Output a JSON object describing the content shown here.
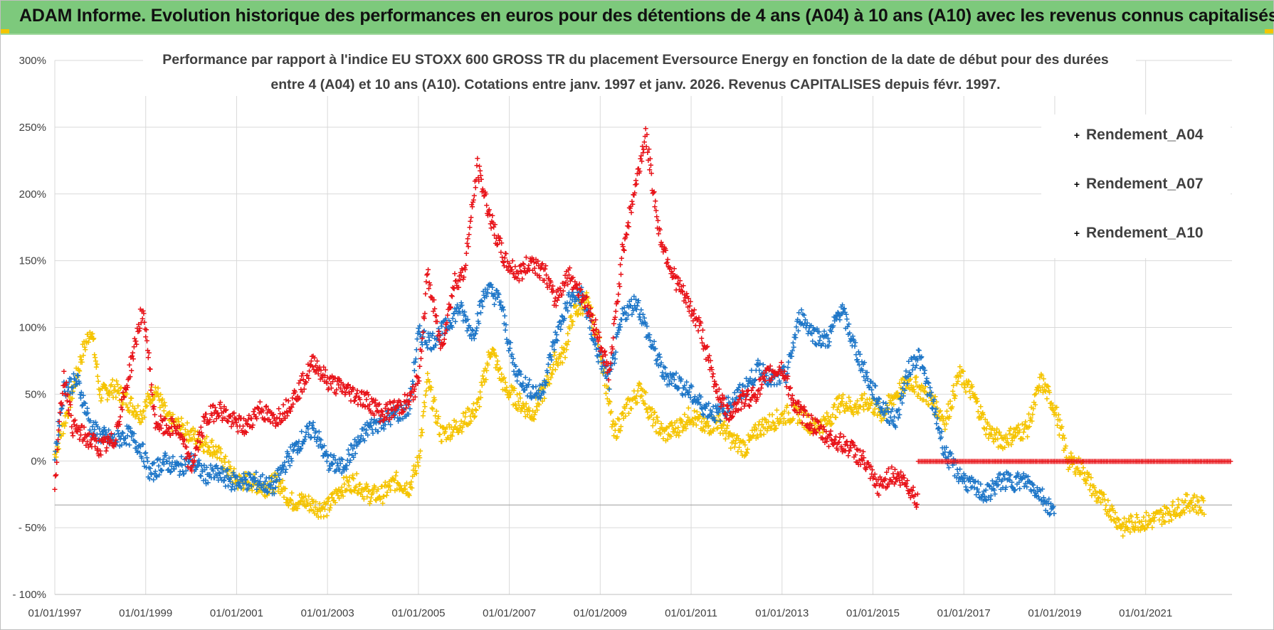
{
  "header": {
    "title": "ADAM Informe. Evolution historique des performances en euros pour des détentions de 4 ans (A04) à 10 ans (A10) avec les revenus connus capitalisés"
  },
  "chart_data": {
    "type": "scatter",
    "title_lines": [
      "Performance par rapport à l'indice EU STOXX 600 GROSS TR  du placement Eversource Energy en fonction de la date de début pour des durées",
      "entre 4 (A04) et 10 ans (A10).  Cotations entre janv. 1997 et janv. 2026. Revenus CAPITALISES depuis févr. 1997."
    ],
    "ylim": [
      -100,
      300
    ],
    "ytick_values": [
      -100,
      -50,
      0,
      50,
      100,
      150,
      200,
      250,
      300
    ],
    "ytick_labels": [
      "- 100%",
      "- 50%",
      "0%",
      "50%",
      "100%",
      "150%",
      "200%",
      "250%",
      "300%"
    ],
    "xlim": [
      1997.0,
      2022.9
    ],
    "xtick_values": [
      1997,
      1999,
      2001,
      2003,
      2005,
      2007,
      2009,
      2011,
      2013,
      2015,
      2017,
      2019,
      2021
    ],
    "xtick_labels": [
      "01/01/1997",
      "01/01/1999",
      "01/01/2001",
      "01/01/2003",
      "01/01/2005",
      "01/01/2007",
      "01/01/2009",
      "01/01/2011",
      "01/01/2013",
      "01/01/2015",
      "01/01/2017",
      "01/01/2019",
      "01/01/2021"
    ],
    "grid": true,
    "legend_position": "top-right",
    "marker": "+",
    "series": [
      {
        "name": "Rendement_A04",
        "color": "#f5c400",
        "x": [
          1997.0,
          1997.3,
          1997.6,
          1997.8,
          1998.0,
          1998.3,
          1998.6,
          1998.9,
          1999.2,
          1999.5,
          1999.8,
          2000.2,
          2000.5,
          2000.8,
          2001.0,
          2001.3,
          2001.6,
          2001.9,
          2002.2,
          2002.5,
          2002.8,
          2003.0,
          2003.3,
          2003.6,
          2003.9,
          2004.2,
          2004.5,
          2004.8,
          2005.0,
          2005.2,
          2005.5,
          2005.8,
          2006.0,
          2006.3,
          2006.6,
          2006.9,
          2007.2,
          2007.5,
          2007.8,
          2008.0,
          2008.2,
          2008.4,
          2008.7,
          2009.0,
          2009.3,
          2009.6,
          2009.9,
          2010.1,
          2010.4,
          2010.7,
          2011.0,
          2011.3,
          2011.6,
          2011.9,
          2012.2,
          2012.5,
          2012.8,
          2013.1,
          2013.4,
          2013.7,
          2014.0,
          2014.3,
          2014.6,
          2014.9,
          2015.2,
          2015.5,
          2015.8,
          2016.0,
          2016.3,
          2016.6,
          2016.9,
          2017.2,
          2017.5,
          2017.8,
          2018.1,
          2018.4,
          2018.7,
          2019.0,
          2019.3,
          2019.6,
          2019.9,
          2020.2,
          2020.5,
          2020.8,
          2021.1,
          2021.4,
          2021.7,
          2022.0,
          2022.3
        ],
        "y": [
          5,
          40,
          80,
          100,
          50,
          55,
          45,
          35,
          55,
          30,
          25,
          15,
          10,
          -5,
          -15,
          -15,
          -20,
          -15,
          -30,
          -30,
          -35,
          -35,
          -20,
          -15,
          -25,
          -25,
          -15,
          -20,
          0,
          60,
          20,
          25,
          30,
          40,
          85,
          55,
          45,
          35,
          55,
          75,
          80,
          110,
          120,
          85,
          20,
          40,
          55,
          35,
          20,
          25,
          35,
          25,
          30,
          15,
          10,
          25,
          30,
          35,
          35,
          25,
          30,
          45,
          40,
          45,
          35,
          50,
          60,
          55,
          45,
          30,
          65,
          50,
          25,
          15,
          20,
          25,
          60,
          40,
          0,
          -5,
          -25,
          -35,
          -50,
          -45,
          -45,
          -40,
          -35,
          -30,
          -35
        ]
      },
      {
        "name": "Rendement_A07",
        "color": "#1f77c8",
        "x": [
          1997.0,
          1997.2,
          1997.5,
          1997.8,
          1998.0,
          1998.3,
          1998.6,
          1998.9,
          1999.1,
          1999.4,
          1999.7,
          2000.0,
          2000.3,
          2000.6,
          2000.9,
          2001.2,
          2001.5,
          2001.8,
          2002.1,
          2002.4,
          2002.7,
          2003.0,
          2003.3,
          2003.6,
          2003.9,
          2004.2,
          2004.5,
          2004.8,
          2005.0,
          2005.3,
          2005.6,
          2005.9,
          2006.2,
          2006.5,
          2006.8,
          2007.1,
          2007.4,
          2007.7,
          2008.0,
          2008.3,
          2008.6,
          2008.9,
          2009.2,
          2009.5,
          2009.8,
          2010.1,
          2010.4,
          2010.7,
          2011.0,
          2011.3,
          2011.6,
          2011.9,
          2012.2,
          2012.5,
          2012.8,
          2013.1,
          2013.4,
          2013.7,
          2014.0,
          2014.3,
          2014.6,
          2014.9,
          2015.2,
          2015.5,
          2015.8,
          2016.0,
          2016.3,
          2016.6,
          2016.9,
          2017.2,
          2017.5,
          2017.8,
          2018.1,
          2018.4,
          2018.7,
          2019.0
        ],
        "y": [
          5,
          55,
          60,
          25,
          20,
          15,
          20,
          10,
          -10,
          0,
          -5,
          0,
          -10,
          -10,
          -15,
          -15,
          -15,
          -20,
          0,
          15,
          25,
          0,
          -5,
          10,
          25,
          30,
          35,
          40,
          95,
          90,
          100,
          115,
          95,
          130,
          120,
          70,
          55,
          50,
          90,
          120,
          125,
          85,
          60,
          110,
          120,
          90,
          65,
          60,
          50,
          40,
          35,
          45,
          55,
          70,
          60,
          65,
          110,
          95,
          90,
          115,
          85,
          60,
          40,
          30,
          70,
          80,
          45,
          5,
          -10,
          -20,
          -25,
          -15,
          -15,
          -15,
          -25,
          -40
        ]
      },
      {
        "name": "Rendement_A10",
        "color": "#e8141a",
        "x": [
          1997.0,
          1997.2,
          1997.4,
          1997.6,
          1997.8,
          1998.0,
          1998.3,
          1998.6,
          1998.9,
          1999.0,
          1999.2,
          1999.4,
          1999.7,
          2000.0,
          2000.3,
          2000.6,
          2000.9,
          2001.2,
          2001.5,
          2001.8,
          2002.1,
          2002.4,
          2002.7,
          2003.0,
          2003.3,
          2003.6,
          2003.9,
          2004.2,
          2004.5,
          2004.8,
          2005.0,
          2005.2,
          2005.5,
          2005.8,
          2006.0,
          2006.3,
          2006.6,
          2006.9,
          2007.2,
          2007.5,
          2007.8,
          2008.0,
          2008.3,
          2008.6,
          2008.9,
          2009.2,
          2009.5,
          2009.8,
          2010.0,
          2010.3,
          2010.6,
          2010.9,
          2011.2,
          2011.5,
          2011.8,
          2012.1,
          2012.4,
          2012.7,
          2013.0,
          2013.3,
          2013.6,
          2013.9,
          2014.2,
          2014.5,
          2014.8,
          2015.1,
          2015.4,
          2015.7,
          2016.0
        ],
        "y": [
          -15,
          65,
          25,
          20,
          15,
          10,
          15,
          60,
          110,
          100,
          30,
          25,
          25,
          -5,
          30,
          40,
          30,
          25,
          40,
          30,
          40,
          55,
          75,
          60,
          55,
          50,
          45,
          35,
          40,
          45,
          60,
          140,
          85,
          135,
          140,
          220,
          180,
          150,
          140,
          150,
          140,
          120,
          140,
          125,
          100,
          65,
          160,
          210,
          245,
          170,
          140,
          120,
          100,
          60,
          35,
          45,
          50,
          65,
          70,
          40,
          30,
          20,
          15,
          10,
          0,
          -20,
          -10,
          -15,
          -30
        ]
      },
      {
        "name": "Rendement_A10",
        "color": "#e8141a",
        "x": [
          2016.0,
          2016.5,
          2017.0,
          2017.5,
          2018.0,
          2018.5,
          2019.0,
          2019.5,
          2020.0,
          2020.5,
          2021.0,
          2021.5,
          2022.0,
          2022.5,
          2022.9
        ],
        "y": [
          0,
          0,
          0,
          0,
          0,
          0,
          0,
          0,
          0,
          0,
          0,
          0,
          0,
          0,
          0
        ]
      }
    ]
  }
}
